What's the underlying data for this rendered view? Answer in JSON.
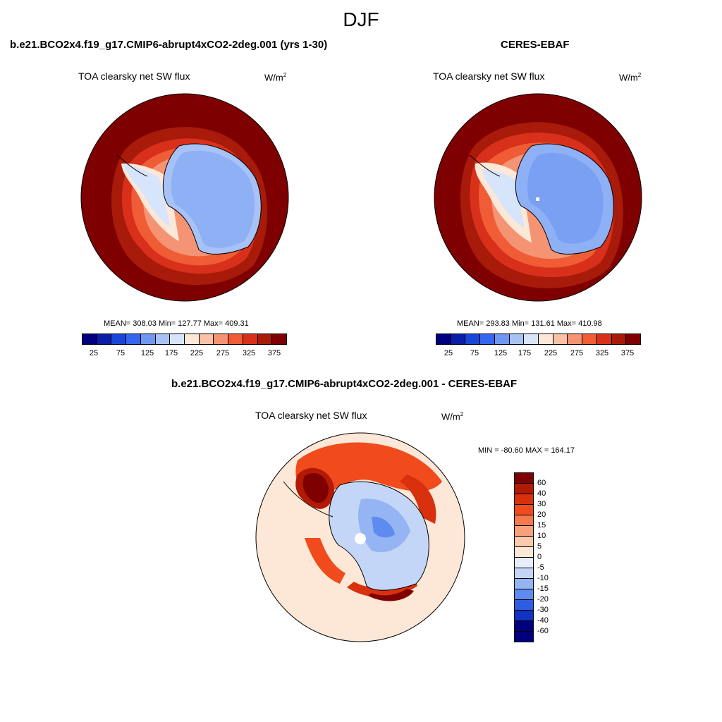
{
  "season": "DJF",
  "panels": [
    {
      "title": "b.e21.BCO2x4.f19_g17.CMIP6-abrupt4xCO2-2deg.001 (yrs 1-30)",
      "variable": "TOA clearsky net SW flux",
      "units_base": "W/m",
      "units_exp": "2",
      "stats": "MEAN= 308.03  Min= 127.77  Max= 409.31",
      "colorbar_labels": [
        "25",
        "75",
        "125",
        "175",
        "225",
        "275",
        "325",
        "375"
      ]
    },
    {
      "title": "CERES-EBAF",
      "variable": "TOA clearsky net SW flux",
      "units_base": "W/m",
      "units_exp": "2",
      "stats": "MEAN= 293.83  Min= 131.61  Max= 410.98",
      "colorbar_labels": [
        "25",
        "75",
        "125",
        "175",
        "225",
        "275",
        "325",
        "375"
      ]
    },
    {
      "title": "b.e21.BCO2x4.f19_g17.CMIP6-abrupt4xCO2-2deg.001 - CERES-EBAF",
      "variable": "TOA clearsky net SW flux",
      "units_base": "W/m",
      "units_exp": "2",
      "stats": "MIN = -80.60 MAX = 164.17",
      "colorbar_labels": [
        "60",
        "40",
        "30",
        "20",
        "15",
        "10",
        "5",
        "0",
        "-5",
        "-10",
        "-15",
        "-20",
        "-30",
        "-40",
        "-60"
      ]
    }
  ],
  "colors": {
    "abs_scale": [
      "#00007f",
      "#0a1fa8",
      "#1a45d9",
      "#3466f0",
      "#6e96f2",
      "#a7c2f6",
      "#d6e5fb",
      "#fde8d8",
      "#f9c2a6",
      "#f59474",
      "#ef5c35",
      "#d8301a",
      "#a81a0a",
      "#7f0000"
    ],
    "diff_scale": [
      "#7f0000",
      "#b31a05",
      "#d9300d",
      "#f04a1d",
      "#f5794d",
      "#f8a07a",
      "#fbc9ad",
      "#fde7d6",
      "#e6eefc",
      "#c3d6f8",
      "#94b4f3",
      "#5e8bf0",
      "#2e5de4",
      "#1033c0",
      "#00007f"
    ]
  }
}
